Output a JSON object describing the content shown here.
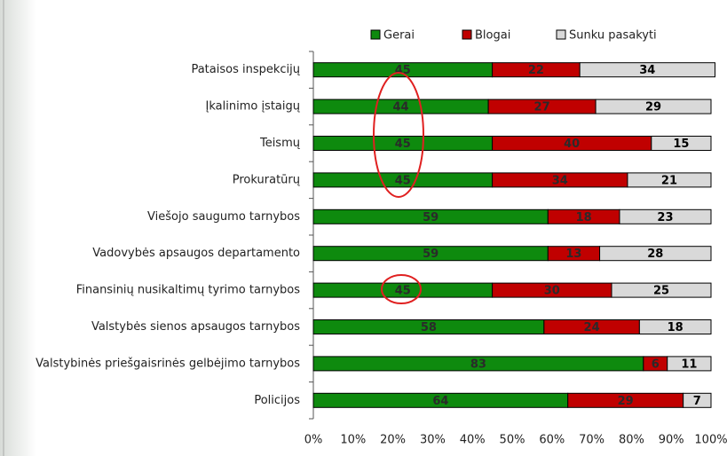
{
  "chart_data": {
    "type": "stacked_barh",
    "categories": [
      "Pataisos inspekcijų",
      "Įkalinimo įstaigų",
      "Teismų",
      "Prokuratūrų",
      "Viešojo saugumo tarnybos",
      "Vadovybės apsaugos departamento",
      "Finansinių nusikaltimų tyrimo tarnybos",
      "Valstybės sienos apsaugos tarnybos",
      "Valstybinės priešgaisrinės gelbėjimo tarnybos",
      "Policijos"
    ],
    "series": [
      {
        "name": "Gerai",
        "color": "#0e8a0e",
        "values": [
          45,
          44,
          45,
          45,
          59,
          59,
          45,
          58,
          83,
          64
        ]
      },
      {
        "name": "Blogai",
        "color": "#c00000",
        "values": [
          22,
          27,
          40,
          34,
          18,
          13,
          30,
          24,
          6,
          29
        ]
      },
      {
        "name": "Sunku pasakyti",
        "color": "#d9d9d9",
        "values": [
          34,
          29,
          15,
          21,
          23,
          28,
          25,
          18,
          11,
          7
        ]
      }
    ],
    "xlim": [
      0,
      100
    ],
    "xticks": [
      {
        "value": 0,
        "label": "0%"
      },
      {
        "value": 10,
        "label": "10%"
      },
      {
        "value": 20,
        "label": "20%"
      },
      {
        "value": 30,
        "label": "30%"
      },
      {
        "value": 40,
        "label": "40%"
      },
      {
        "value": 50,
        "label": "50%"
      },
      {
        "value": 60,
        "label": "60%"
      },
      {
        "value": 70,
        "label": "70%"
      },
      {
        "value": 80,
        "label": "80%"
      },
      {
        "value": 90,
        "label": "90%"
      },
      {
        "value": 100,
        "label": "100%"
      }
    ],
    "legend": "top"
  }
}
